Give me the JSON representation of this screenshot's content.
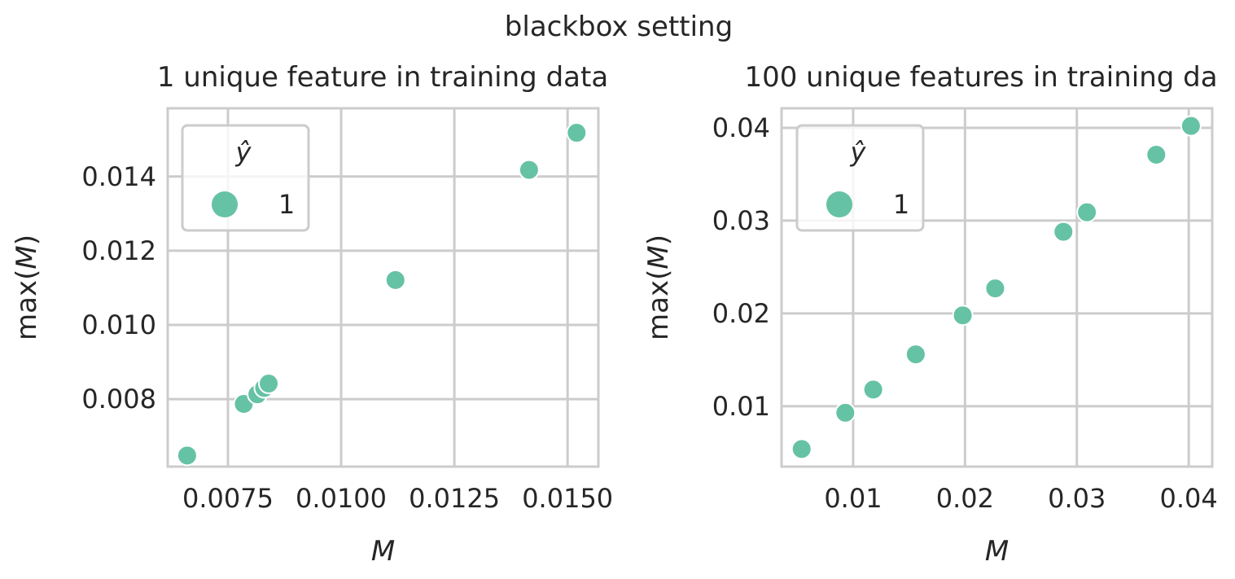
{
  "suptitle": "blackbox setting",
  "colors": {
    "marker": "#66c2a5",
    "grid": "#cccccc",
    "text": "#262626"
  },
  "chart_data": [
    {
      "type": "scatter",
      "title": "1 unique feature in training data",
      "xlabel": "M",
      "ylabel": "max(M)",
      "xlim": [
        0.00617,
        0.01568
      ],
      "ylim": [
        0.00618,
        0.01584
      ],
      "xticks": [
        0.0075,
        0.01,
        0.0125,
        0.015
      ],
      "xtick_labels": [
        "0.0075",
        "0.0100",
        "0.0125",
        "0.0150"
      ],
      "yticks": [
        0.008,
        0.01,
        0.012,
        0.014
      ],
      "ytick_labels": [
        "0.008",
        "0.010",
        "0.012",
        "0.014"
      ],
      "grid": true,
      "legend": {
        "title": "ŷ",
        "placement": "top-left",
        "entries": [
          "1"
        ]
      },
      "series": [
        {
          "name": "1",
          "x": [
            0.0066,
            0.00785,
            0.00815,
            0.0083,
            0.0084,
            0.0112,
            0.01415,
            0.0152
          ],
          "y": [
            0.00648,
            0.00787,
            0.00813,
            0.0083,
            0.00842,
            0.01121,
            0.01418,
            0.01518
          ]
        }
      ]
    },
    {
      "type": "scatter",
      "title": "100 unique features in training da",
      "xlabel": "M",
      "ylabel": "max(M)",
      "xlim": [
        0.0036,
        0.0421
      ],
      "ylim": [
        0.0035,
        0.0421
      ],
      "xticks": [
        0.01,
        0.02,
        0.03,
        0.04
      ],
      "xtick_labels": [
        "0.01",
        "0.02",
        "0.03",
        "0.04"
      ],
      "yticks": [
        0.01,
        0.02,
        0.03,
        0.04
      ],
      "ytick_labels": [
        "0.01",
        "0.02",
        "0.03",
        "0.04"
      ],
      "grid": true,
      "legend": {
        "title": "ŷ",
        "placement": "top-left",
        "entries": [
          "1"
        ]
      },
      "series": [
        {
          "name": "1",
          "x": [
            0.0054,
            0.0093,
            0.0118,
            0.0156,
            0.0198,
            0.0227,
            0.0288,
            0.0309,
            0.0371,
            0.0402
          ],
          "y": [
            0.0054,
            0.0093,
            0.0118,
            0.0156,
            0.0198,
            0.0227,
            0.0288,
            0.0309,
            0.0371,
            0.0402
          ]
        }
      ]
    }
  ]
}
